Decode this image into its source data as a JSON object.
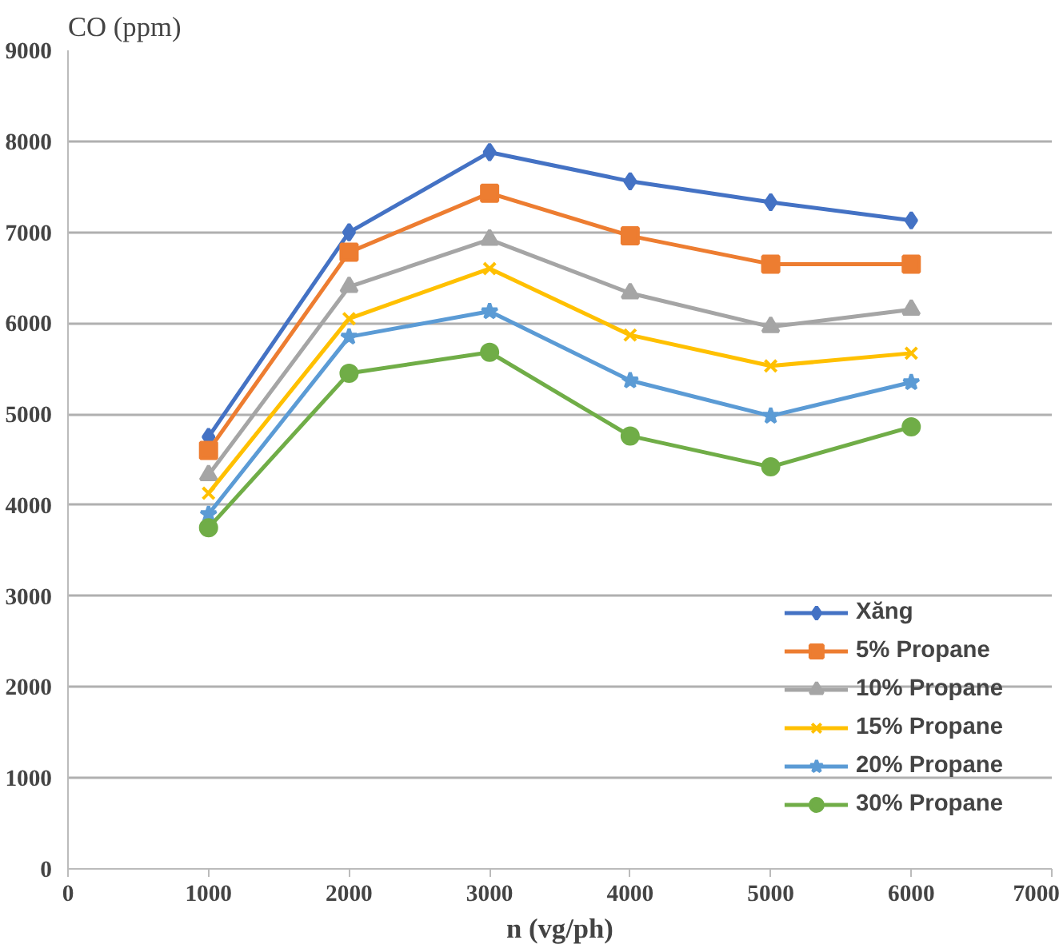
{
  "chart_data": {
    "type": "line",
    "ylabel": "CO (ppm)",
    "xlabel": "n (vg/ph)",
    "x": [
      1000,
      2000,
      3000,
      4000,
      5000,
      6000
    ],
    "xlim": [
      0,
      7000
    ],
    "xticks": [
      0,
      1000,
      2000,
      3000,
      4000,
      5000,
      6000,
      7000
    ],
    "ylim": [
      0,
      9000
    ],
    "yticks": [
      0,
      1000,
      2000,
      3000,
      4000,
      5000,
      6000,
      7000,
      8000,
      9000
    ],
    "grid": "y",
    "legend": "bottom right",
    "series": [
      {
        "name": "Xăng",
        "color": "#4472c4",
        "marker": "diamond",
        "values": [
          4750,
          7000,
          7880,
          7560,
          7330,
          7130
        ]
      },
      {
        "name": "5% Propane",
        "color": "#ed7d31",
        "marker": "square",
        "values": [
          4600,
          6780,
          7430,
          6960,
          6650,
          6650
        ]
      },
      {
        "name": "10% Propane",
        "color": "#a5a5a5",
        "marker": "triangle",
        "values": [
          4330,
          6400,
          6920,
          6330,
          5960,
          6150
        ]
      },
      {
        "name": "15% Propane",
        "color": "#ffc000",
        "marker": "cross",
        "values": [
          4130,
          6050,
          6600,
          5870,
          5530,
          5670
        ]
      },
      {
        "name": "20% Propane",
        "color": "#5b9bd5",
        "marker": "star",
        "values": [
          3900,
          5850,
          6130,
          5370,
          4980,
          5350
        ]
      },
      {
        "name": "30% Propane",
        "color": "#70ad47",
        "marker": "circle",
        "values": [
          3750,
          5450,
          5680,
          4760,
          4420,
          4860
        ]
      }
    ]
  }
}
